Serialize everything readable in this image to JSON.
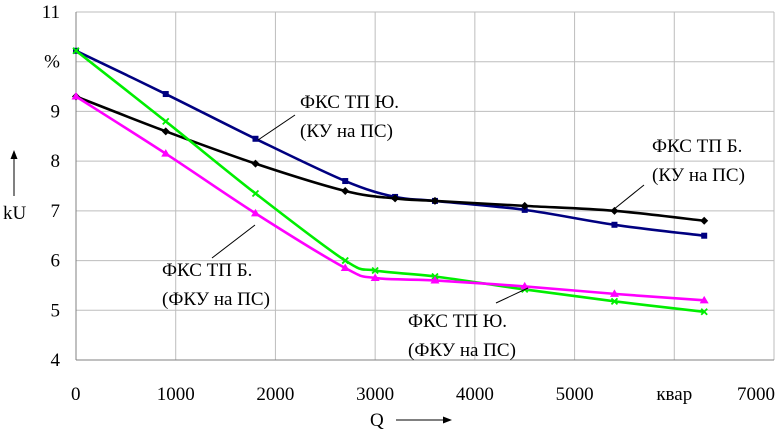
{
  "chart_data": {
    "type": "line",
    "xlim": [
      0,
      7000
    ],
    "ylim": [
      4,
      11
    ],
    "x_ticks": [
      "0",
      "1000",
      "2000",
      "3000",
      "4000",
      "5000",
      "квар",
      "7000"
    ],
    "y_ticks": [
      "4",
      "5",
      "6",
      "7",
      "8",
      "9",
      "%",
      "11"
    ],
    "xlabel": "Q",
    "ylabel": "kU",
    "grid": true,
    "series": [
      {
        "name": "ФКС ТП Ю. (КУ на ПС)",
        "color": "#000080",
        "marker": "square",
        "x": [
          0,
          900,
          1800,
          2700,
          3200,
          3600,
          4500,
          5400,
          6300
        ],
        "y": [
          10.22,
          9.35,
          8.45,
          7.6,
          7.28,
          7.2,
          7.02,
          6.72,
          6.5
        ]
      },
      {
        "name": "ФКС ТП Б. (КУ на ПС)",
        "color": "#000000",
        "marker": "diamond",
        "x": [
          0,
          900,
          1800,
          2700,
          3200,
          3600,
          4500,
          5400,
          6300
        ],
        "y": [
          9.3,
          8.6,
          7.95,
          7.4,
          7.25,
          7.2,
          7.1,
          7.0,
          6.8
        ]
      },
      {
        "name": "ФКС ТП Ю. (ФКУ на ПС)",
        "color": "#00ee00",
        "marker": "x",
        "x": [
          0,
          900,
          1800,
          2700,
          3000,
          3600,
          4500,
          5400,
          6300
        ],
        "y": [
          10.22,
          8.8,
          7.35,
          6.0,
          5.8,
          5.68,
          5.42,
          5.18,
          4.97
        ]
      },
      {
        "name": "ФКС ТП Б. (ФКУ на ПС)",
        "color": "#ff00ff",
        "marker": "triangle",
        "x": [
          0,
          900,
          1800,
          2700,
          3000,
          3600,
          4500,
          5400,
          6300
        ],
        "y": [
          9.3,
          8.15,
          6.95,
          5.85,
          5.65,
          5.6,
          5.48,
          5.33,
          5.2
        ]
      }
    ],
    "annotations": [
      {
        "line1": "ФКС ТП Ю.",
        "line2": "(КУ на ПС)",
        "series": 0
      },
      {
        "line1": "ФКС ТП Б.",
        "line2": "(КУ на ПС)",
        "series": 1
      },
      {
        "line1": "ФКС ТП Б.",
        "line2": "(ФКУ на ПС)",
        "series": 3
      },
      {
        "line1": "ФКС ТП Ю.",
        "line2": "(ФКУ на ПС)",
        "series": 2
      }
    ]
  }
}
